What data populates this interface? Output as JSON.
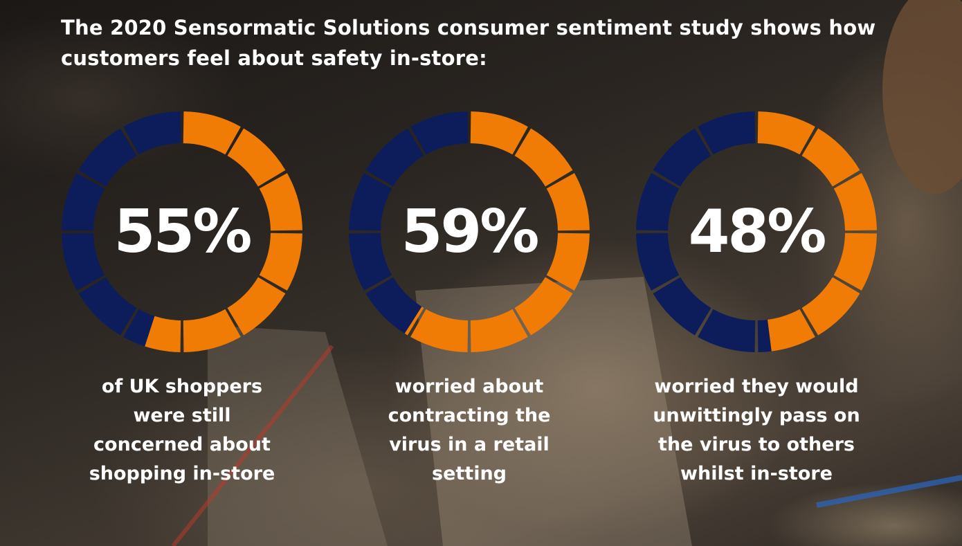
{
  "heading": "The 2020 Sensormatic Solutions consumer sentiment study shows how customers feel about safety in-store:",
  "colors": {
    "filled": "#f07b05",
    "unfilled": "#0d1d5c",
    "gap": "#2b2622",
    "text": "#ffffff"
  },
  "chart_data": [
    {
      "type": "pie",
      "value": 55,
      "unit": "%",
      "label": "55%",
      "caption": "of UK shoppers were still concerned about shopping in-store"
    },
    {
      "type": "pie",
      "value": 59,
      "unit": "%",
      "label": "59%",
      "caption": "worried about contracting the virus in a retail setting"
    },
    {
      "type": "pie",
      "value": 48,
      "unit": "%",
      "label": "48%",
      "caption": "worried they would unwittingly pass on the virus to others whilst in-store"
    }
  ]
}
